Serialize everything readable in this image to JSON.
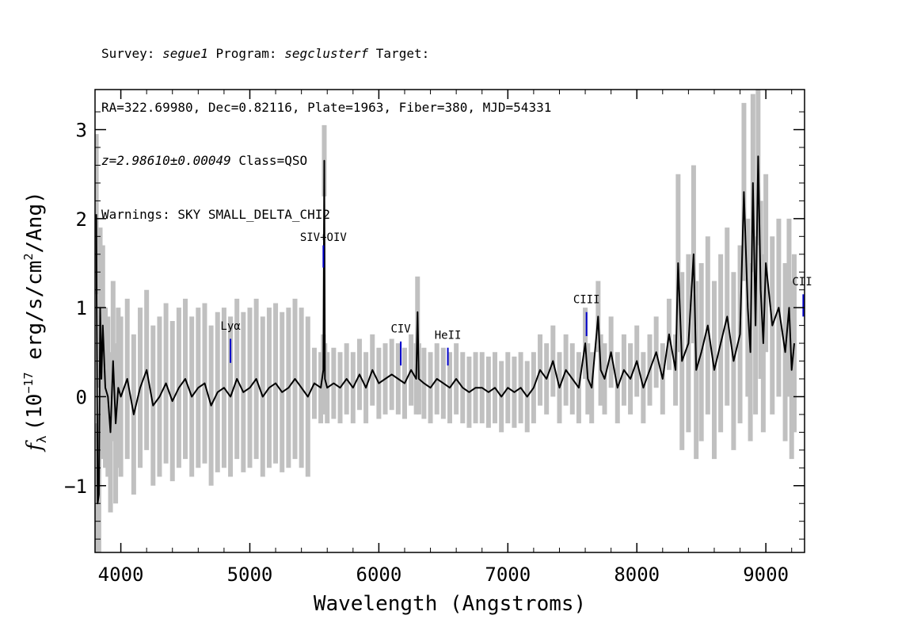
{
  "header": {
    "line1_prefix": "Survey: ",
    "survey": "segue1",
    "line1_mid": " Program: ",
    "program": "segclusterf",
    "line1_suffix": " Target:",
    "line2": "RA=322.69980, Dec=0.82116, Plate=1963, Fiber=380, MJD=54331",
    "z_text": "z=2.98610±0.00049",
    "class_text": " Class=QSO",
    "warnings": "Warnings: SKY SMALL_DELTA_CHI2"
  },
  "colors": {
    "flux": "#000000",
    "error": "#c0c0c0",
    "line_marker": "#0000cc",
    "axes": "#000000"
  },
  "chart_data": {
    "type": "line",
    "title": "",
    "xlabel": "Wavelength (Angstroms)",
    "ylabel": "f_λ (10^-17 erg/s/cm^2/Ang)",
    "ylabel_parts": {
      "f": "f",
      "sub": "λ",
      "pre": "(10",
      "exp": "−17",
      "mid": " erg/s/cm",
      "exp2": "2",
      "post": "/Ang)"
    },
    "xlim": [
      3800,
      9300
    ],
    "ylim": [
      -1.75,
      3.45
    ],
    "xticks": [
      4000,
      5000,
      6000,
      7000,
      8000,
      9000
    ],
    "xtick_labels": [
      "4000",
      "5000",
      "6000",
      "7000",
      "8000",
      "9000"
    ],
    "yticks": [
      -1,
      0,
      1,
      2,
      3
    ],
    "ytick_labels": [
      "−1",
      "0",
      "1",
      "2",
      "3"
    ],
    "grid": false,
    "series": [
      {
        "role": "flux",
        "x": [
          3810,
          3820,
          3830,
          3840,
          3850,
          3860,
          3880,
          3900,
          3920,
          3940,
          3960,
          3980,
          4000,
          4050,
          4100,
          4150,
          4200,
          4250,
          4300,
          4350,
          4400,
          4450,
          4500,
          4550,
          4600,
          4650,
          4700,
          4750,
          4800,
          4850,
          4900,
          4950,
          5000,
          5050,
          5100,
          5150,
          5200,
          5250,
          5300,
          5350,
          5400,
          5450,
          5500,
          5550,
          5570,
          5577,
          5582,
          5600,
          5650,
          5700,
          5750,
          5800,
          5850,
          5900,
          5950,
          6000,
          6050,
          6100,
          6150,
          6200,
          6250,
          6290,
          6300,
          6310,
          6350,
          6400,
          6450,
          6500,
          6550,
          6600,
          6650,
          6700,
          6750,
          6800,
          6850,
          6900,
          6950,
          7000,
          7050,
          7100,
          7150,
          7200,
          7250,
          7300,
          7350,
          7400,
          7450,
          7500,
          7550,
          7600,
          7620,
          7650,
          7700,
          7720,
          7750,
          7800,
          7850,
          7900,
          7950,
          8000,
          8050,
          8100,
          8150,
          8200,
          8250,
          8300,
          8320,
          8350,
          8400,
          8440,
          8460,
          8500,
          8550,
          8600,
          8650,
          8700,
          8750,
          8800,
          8830,
          8860,
          8880,
          8900,
          8920,
          8940,
          8960,
          8980,
          9000,
          9050,
          9100,
          9150,
          9180,
          9200,
          9220
        ],
        "y": [
          2.05,
          -1.2,
          -1.1,
          1.0,
          0.2,
          0.8,
          0.1,
          0.0,
          -0.4,
          0.4,
          -0.3,
          0.1,
          0.0,
          0.2,
          -0.2,
          0.1,
          0.3,
          -0.1,
          0.0,
          0.15,
          -0.05,
          0.1,
          0.2,
          0.0,
          0.1,
          0.15,
          -0.1,
          0.05,
          0.1,
          0.0,
          0.2,
          0.05,
          0.1,
          0.2,
          0.0,
          0.1,
          0.15,
          0.05,
          0.1,
          0.2,
          0.1,
          0.0,
          0.15,
          0.1,
          0.3,
          2.65,
          0.2,
          0.1,
          0.15,
          0.1,
          0.2,
          0.1,
          0.25,
          0.1,
          0.3,
          0.15,
          0.2,
          0.25,
          0.2,
          0.15,
          0.3,
          0.2,
          0.95,
          0.2,
          0.15,
          0.1,
          0.2,
          0.15,
          0.1,
          0.2,
          0.1,
          0.05,
          0.1,
          0.1,
          0.05,
          0.1,
          0.0,
          0.1,
          0.05,
          0.1,
          0.0,
          0.1,
          0.3,
          0.2,
          0.4,
          0.1,
          0.3,
          0.2,
          0.1,
          0.6,
          0.2,
          0.1,
          0.9,
          0.3,
          0.2,
          0.5,
          0.1,
          0.3,
          0.2,
          0.4,
          0.1,
          0.3,
          0.5,
          0.2,
          0.7,
          0.3,
          1.5,
          0.4,
          0.6,
          1.6,
          0.3,
          0.5,
          0.8,
          0.3,
          0.6,
          0.9,
          0.4,
          0.7,
          2.3,
          1.0,
          0.5,
          2.4,
          0.8,
          2.7,
          1.2,
          0.6,
          1.5,
          0.8,
          1.0,
          0.5,
          1.0,
          0.3,
          0.6
        ]
      }
    ],
    "annotations": [
      {
        "label": "Lyα",
        "x": 4850,
        "label_y": 0.75,
        "tick_y": [
          0.38,
          0.65
        ]
      },
      {
        "label": "SIV+OIV",
        "x": 5570,
        "label_y": 1.75,
        "tick_y": [
          1.45,
          1.7
        ]
      },
      {
        "label": "CIV",
        "x": 6170,
        "label_y": 0.72,
        "tick_y": [
          0.35,
          0.62
        ]
      },
      {
        "label": "HeII",
        "x": 6535,
        "label_y": 0.65,
        "tick_y": [
          0.35,
          0.55
        ]
      },
      {
        "label": "CIII",
        "x": 7610,
        "label_y": 1.05,
        "tick_y": [
          0.68,
          0.95
        ]
      },
      {
        "label": "CII",
        "x": 9290,
        "label_y": 1.25,
        "tick_y": [
          0.9,
          1.15
        ]
      }
    ]
  }
}
